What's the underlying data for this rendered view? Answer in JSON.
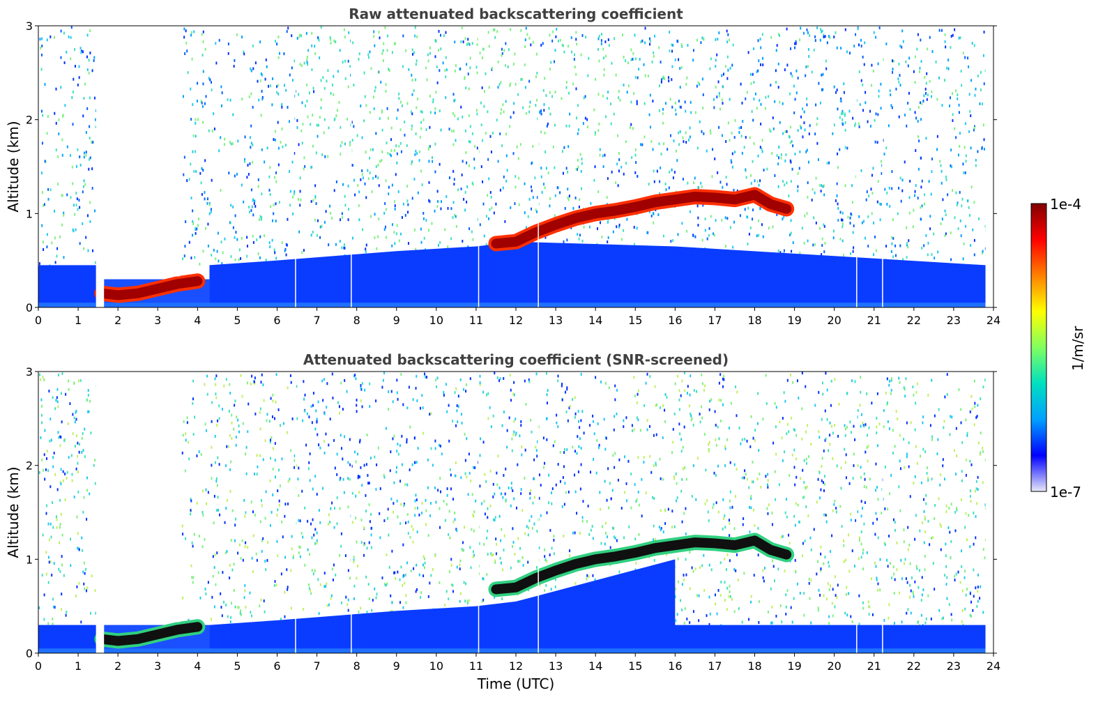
{
  "chart_data": [
    {
      "type": "heatmap",
      "title": "Raw attenuated backscattering coefficient",
      "xlabel": "",
      "ylabel": "Altitude (km)",
      "xlim": [
        0,
        24
      ],
      "ylim": [
        0,
        3
      ],
      "xticks": [
        "0",
        "1",
        "2",
        "3",
        "4",
        "5",
        "6",
        "7",
        "8",
        "9",
        "10",
        "11",
        "12",
        "13",
        "14",
        "15",
        "16",
        "17",
        "18",
        "19",
        "20",
        "21",
        "22",
        "23",
        "24"
      ],
      "yticks": [
        "0",
        "1",
        "2",
        "3"
      ],
      "features": {
        "no_data_gap_hours": [
          1.45,
          1.65
        ],
        "boundary_layer_top_km": 0.45,
        "cloud_layer": {
          "x": [
            1.6,
            2.0,
            2.5,
            3.0,
            3.5,
            4.0,
            11.5,
            12.0,
            12.5,
            13.0,
            13.5,
            14.0,
            14.5,
            15.0,
            15.5,
            16.0,
            16.5,
            17.0,
            17.5,
            18.0,
            18.4,
            18.8
          ],
          "y_km": [
            0.15,
            0.13,
            0.15,
            0.2,
            0.25,
            0.28,
            0.68,
            0.7,
            0.8,
            0.88,
            0.95,
            1.0,
            1.03,
            1.07,
            1.12,
            1.15,
            1.18,
            1.17,
            1.15,
            1.2,
            1.1,
            1.05
          ]
        }
      }
    },
    {
      "type": "heatmap",
      "title": "Attenuated backscattering coefficient (SNR-screened)",
      "xlabel": "Time (UTC)",
      "ylabel": "Altitude (km)",
      "xlim": [
        0,
        24
      ],
      "ylim": [
        0,
        3
      ],
      "xticks": [
        "0",
        "1",
        "2",
        "3",
        "4",
        "5",
        "6",
        "7",
        "8",
        "9",
        "10",
        "11",
        "12",
        "13",
        "14",
        "15",
        "16",
        "17",
        "18",
        "19",
        "20",
        "21",
        "22",
        "23",
        "24"
      ],
      "yticks": [
        "0",
        "1",
        "2",
        "3"
      ],
      "features": {
        "no_data_gap_hours": [
          1.45,
          1.65
        ],
        "boundary_layer_top_km": 0.3,
        "cloud_layer": {
          "x": [
            1.6,
            2.0,
            2.5,
            3.0,
            3.5,
            4.0,
            11.5,
            12.0,
            12.5,
            13.0,
            13.5,
            14.0,
            14.5,
            15.0,
            15.5,
            16.0,
            16.5,
            17.0,
            17.5,
            18.0,
            18.4,
            18.8
          ],
          "y_km": [
            0.15,
            0.13,
            0.15,
            0.2,
            0.25,
            0.28,
            0.68,
            0.7,
            0.8,
            0.88,
            0.95,
            1.0,
            1.03,
            1.07,
            1.12,
            1.15,
            1.18,
            1.17,
            1.15,
            1.2,
            1.1,
            1.05
          ]
        }
      }
    }
  ],
  "colorbar": {
    "label": "1/m/sr",
    "max_label": "1e-4",
    "min_label": "1e-7",
    "stops": [
      "#e8e8f8",
      "#0000ff",
      "#00a0ff",
      "#00e0c0",
      "#80ff60",
      "#ffff00",
      "#ff8000",
      "#ff0000",
      "#800000"
    ]
  }
}
